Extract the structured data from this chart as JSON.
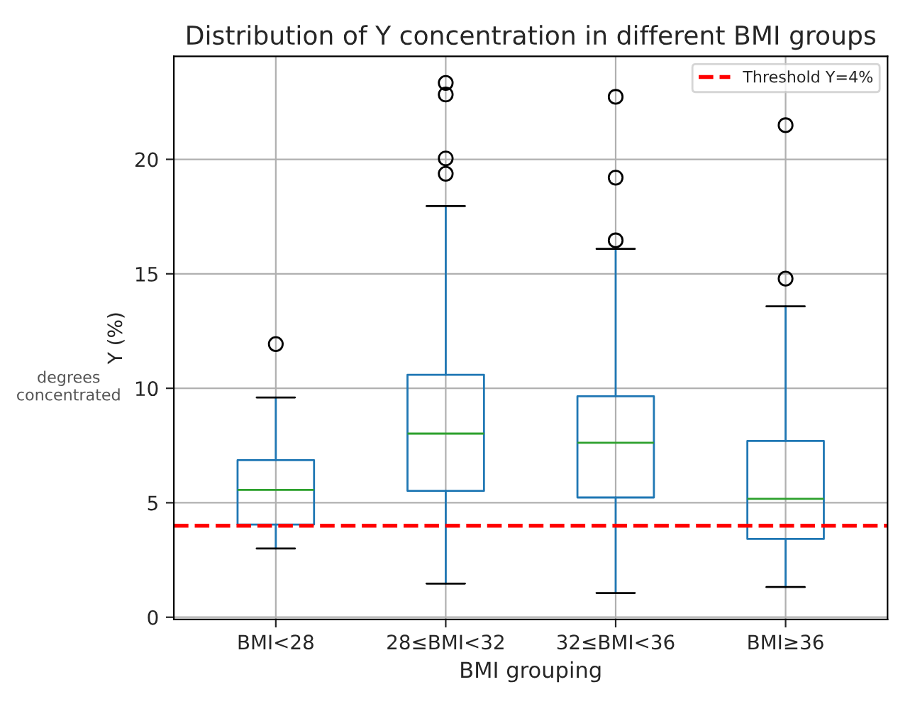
{
  "chart_data": {
    "type": "box",
    "title": "Distribution of Y concentration in different BMI groups",
    "xlabel": "BMI grouping",
    "ylabel": "Y (%)",
    "annotations": [
      "degrees concentrated"
    ],
    "categories": [
      "BMI<28",
      "28≤BMI<32",
      "32≤BMI<36",
      "BMI≥36"
    ],
    "series": [
      {
        "color": "#1f77b4",
        "boxes": [
          {
            "low": 3.0,
            "q1": 4.05,
            "median": 5.56,
            "q3": 6.86,
            "high": 9.6,
            "outliers": [
              11.93
            ]
          },
          {
            "low": 1.47,
            "q1": 5.52,
            "median": 8.02,
            "q3": 10.59,
            "high": 17.96,
            "outliers": [
              23.34,
              22.83,
              20.04,
              19.37
            ]
          },
          {
            "low": 1.06,
            "q1": 5.23,
            "median": 7.62,
            "q3": 9.65,
            "high": 16.09,
            "outliers": [
              22.73,
              19.2,
              16.46
            ]
          },
          {
            "low": 1.32,
            "q1": 3.42,
            "median": 5.17,
            "q3": 7.7,
            "high": 13.58,
            "outliers": [
              21.49,
              14.79
            ]
          }
        ]
      }
    ],
    "ylim": [
      -0.1,
      24.5
    ],
    "yticks": [
      0,
      5,
      10,
      15,
      20
    ],
    "grid": true,
    "legend": "top right",
    "ref_lines": [
      {
        "axis": "y",
        "value": 4,
        "label": "Threshold Y=4%",
        "color": "#ff0000",
        "line_style": "dashed"
      }
    ]
  }
}
